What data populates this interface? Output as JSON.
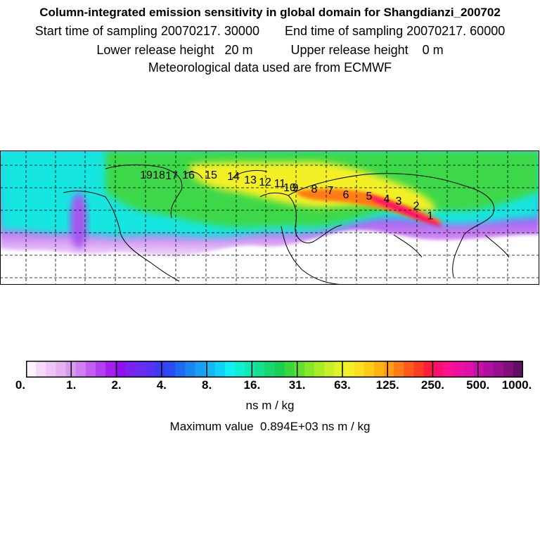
{
  "header": {
    "title": "Column-integrated emission sensitivity in global domain for Shangdianzi_200702",
    "start_label": "Start time of sampling 20070217. 30000",
    "end_label": "End time of sampling 20070217. 60000",
    "lower_label": "Lower release height   20 m",
    "upper_label": "Upper release height    0 m",
    "met_label": "Meteorological data used are from ECMWF"
  },
  "map": {
    "trajectory_labels": [
      "1",
      "2",
      "3",
      "4",
      "5",
      "6",
      "7",
      "8",
      "9",
      "10",
      "11",
      "12",
      "13",
      "14",
      "15",
      "16",
      "17",
      "18",
      "19"
    ]
  },
  "colorbar": {
    "colors": [
      "#fff2ff",
      "#f7d8fb",
      "#efc4f7",
      "#e6b0f2",
      "#d99aee",
      "#cf7ff0",
      "#c25ef1",
      "#b33ff0",
      "#a41ff0",
      "#9010f2",
      "#7a22f0",
      "#6a2cf0",
      "#5533f0",
      "#3c3cf2",
      "#2b4cf2",
      "#1e6bf2",
      "#1a86f2",
      "#189ff4",
      "#14b8f4",
      "#10d2f6",
      "#10f0f0",
      "#10f0d0",
      "#12e8b4",
      "#14e090",
      "#16d870",
      "#18d054",
      "#38d83c",
      "#60e030",
      "#88e828",
      "#a8ec28",
      "#c8f028",
      "#e0f428",
      "#f4f028",
      "#ffe020",
      "#ffcc18",
      "#ffb414",
      "#ff9c14",
      "#ff7c18",
      "#ff5c1c",
      "#ff3c24",
      "#ff1c3c",
      "#ff1070",
      "#ff1090",
      "#f010a0",
      "#e010a8",
      "#c810a8",
      "#b010a0",
      "#981090",
      "#801078",
      "#601060"
    ],
    "tick_labels": [
      "0.",
      "1.",
      "2.",
      "4.",
      "8.",
      "16.",
      "31.",
      "63.",
      "125.",
      "250.",
      "500.",
      "1000."
    ],
    "unit": "ns m / kg",
    "maximum_label": "Maximum value  0.894E+03 ns m / kg"
  }
}
